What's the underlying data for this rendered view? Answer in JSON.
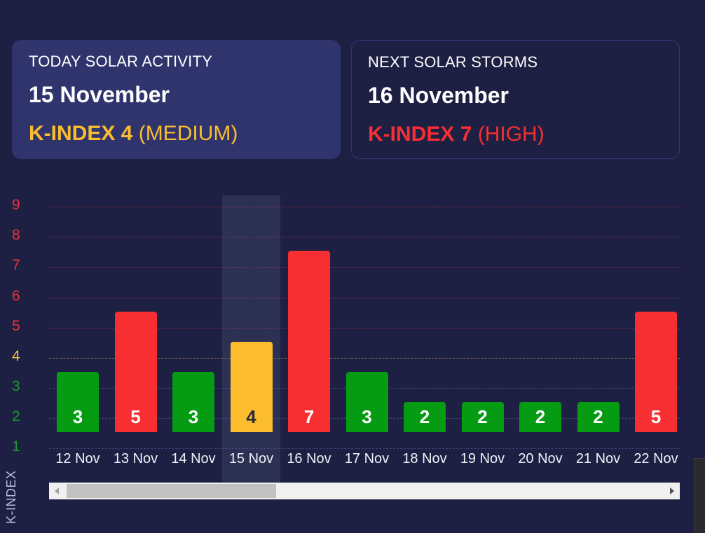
{
  "today_card": {
    "label": "TODAY SOLAR ACTIVITY",
    "date": "15 November",
    "kindex": "K-INDEX 4",
    "level": "(MEDIUM)",
    "color": "#fbbd2d"
  },
  "next_card": {
    "label": "NEXT SOLAR STORMS",
    "date": "16 November",
    "kindex": "K-INDEX 7",
    "level": "(HIGH)",
    "color": "#f72e32"
  },
  "colors": {
    "low": "#059c14",
    "medium": "#fbbd2d",
    "high": "#f72e32",
    "background": "#1d2042"
  },
  "chart_data": {
    "type": "bar",
    "title": "",
    "xlabel": "",
    "ylabel": "K-INDEX",
    "ylim": [
      1,
      9
    ],
    "yticks": [
      "1",
      "2",
      "3",
      "4",
      "5",
      "6",
      "7",
      "8",
      "9"
    ],
    "grid": true,
    "highlighted_category": "15 Nov",
    "categories": [
      "12 Nov",
      "13 Nov",
      "14 Nov",
      "15 Nov",
      "16 Nov",
      "17 Nov",
      "18 Nov",
      "19 Nov",
      "20 Nov",
      "21 Nov",
      "22 Nov"
    ],
    "values": [
      3,
      5,
      3,
      4,
      7,
      3,
      2,
      2,
      2,
      2,
      5
    ],
    "bar_colors": [
      "#059c14",
      "#f72e32",
      "#059c14",
      "#fbbd2d",
      "#f72e32",
      "#059c14",
      "#059c14",
      "#059c14",
      "#059c14",
      "#059c14",
      "#f72e32"
    ],
    "data_labels": [
      "3",
      "5",
      "3",
      "4",
      "7",
      "3",
      "2",
      "2",
      "2",
      "2",
      "5"
    ]
  },
  "scrollbar": {
    "left_arrow": "scroll-left",
    "right_arrow": "scroll-right"
  }
}
